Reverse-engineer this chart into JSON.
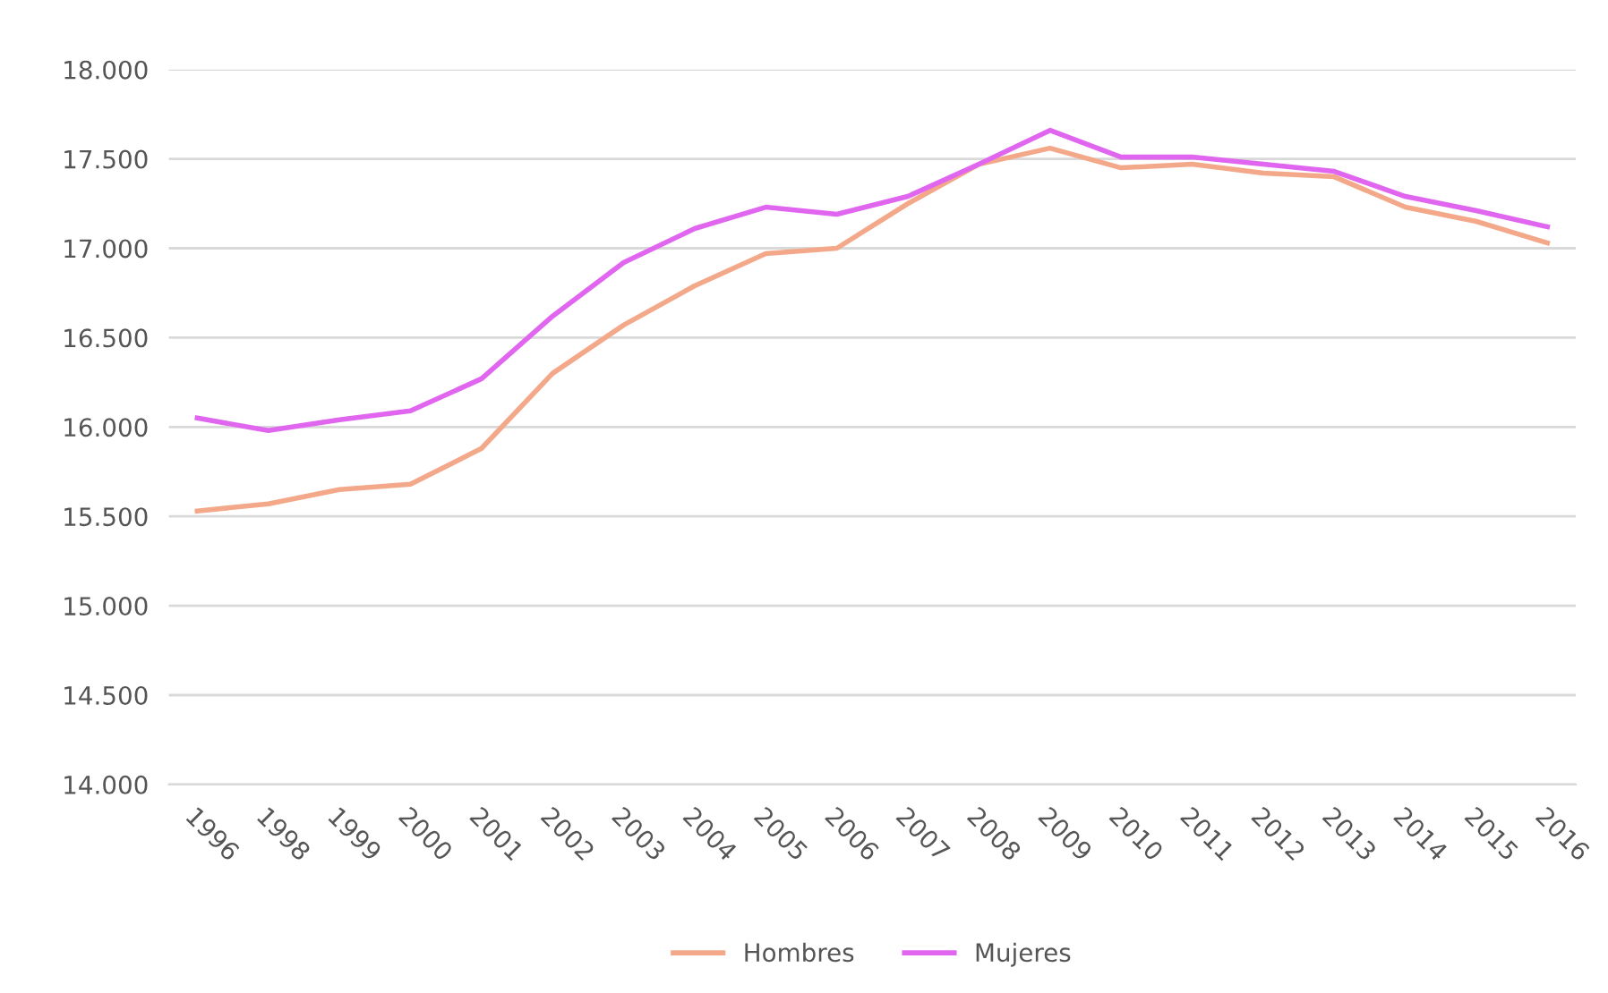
{
  "chart_data": {
    "type": "line",
    "categories": [
      "1996",
      "1998",
      "1999",
      "2000",
      "2001",
      "2002",
      "2003",
      "2004",
      "2005",
      "2006",
      "2007",
      "2008",
      "2009",
      "2010",
      "2011",
      "2012",
      "2013",
      "2014",
      "2015",
      "2016"
    ],
    "series": [
      {
        "name": "Hombres",
        "color": "#f4a88a",
        "values": [
          15530,
          15570,
          15650,
          15680,
          15880,
          16300,
          16570,
          16790,
          16970,
          17000,
          17250,
          17470,
          17560,
          17450,
          17470,
          17420,
          17400,
          17230,
          17150,
          17030
        ]
      },
      {
        "name": "Mujeres",
        "color": "#e066f0",
        "values": [
          16050,
          15980,
          16040,
          16090,
          16270,
          16620,
          16920,
          17110,
          17230,
          17190,
          17290,
          17470,
          17660,
          17510,
          17510,
          17470,
          17430,
          17290,
          17210,
          17120
        ]
      }
    ],
    "ylim": [
      14000,
      18000
    ],
    "yticks": [
      {
        "value": 14000,
        "label": "14.000"
      },
      {
        "value": 14500,
        "label": "14.500"
      },
      {
        "value": 15000,
        "label": "15.000"
      },
      {
        "value": 15500,
        "label": "15.500"
      },
      {
        "value": 16000,
        "label": "16.000"
      },
      {
        "value": 16500,
        "label": "16.500"
      },
      {
        "value": 17000,
        "label": "17.000"
      },
      {
        "value": 17500,
        "label": "17.500"
      },
      {
        "value": 18000,
        "label": "18.000"
      }
    ],
    "grid": "y",
    "legend": "bottom",
    "marker": "none",
    "line_style": "solid"
  }
}
